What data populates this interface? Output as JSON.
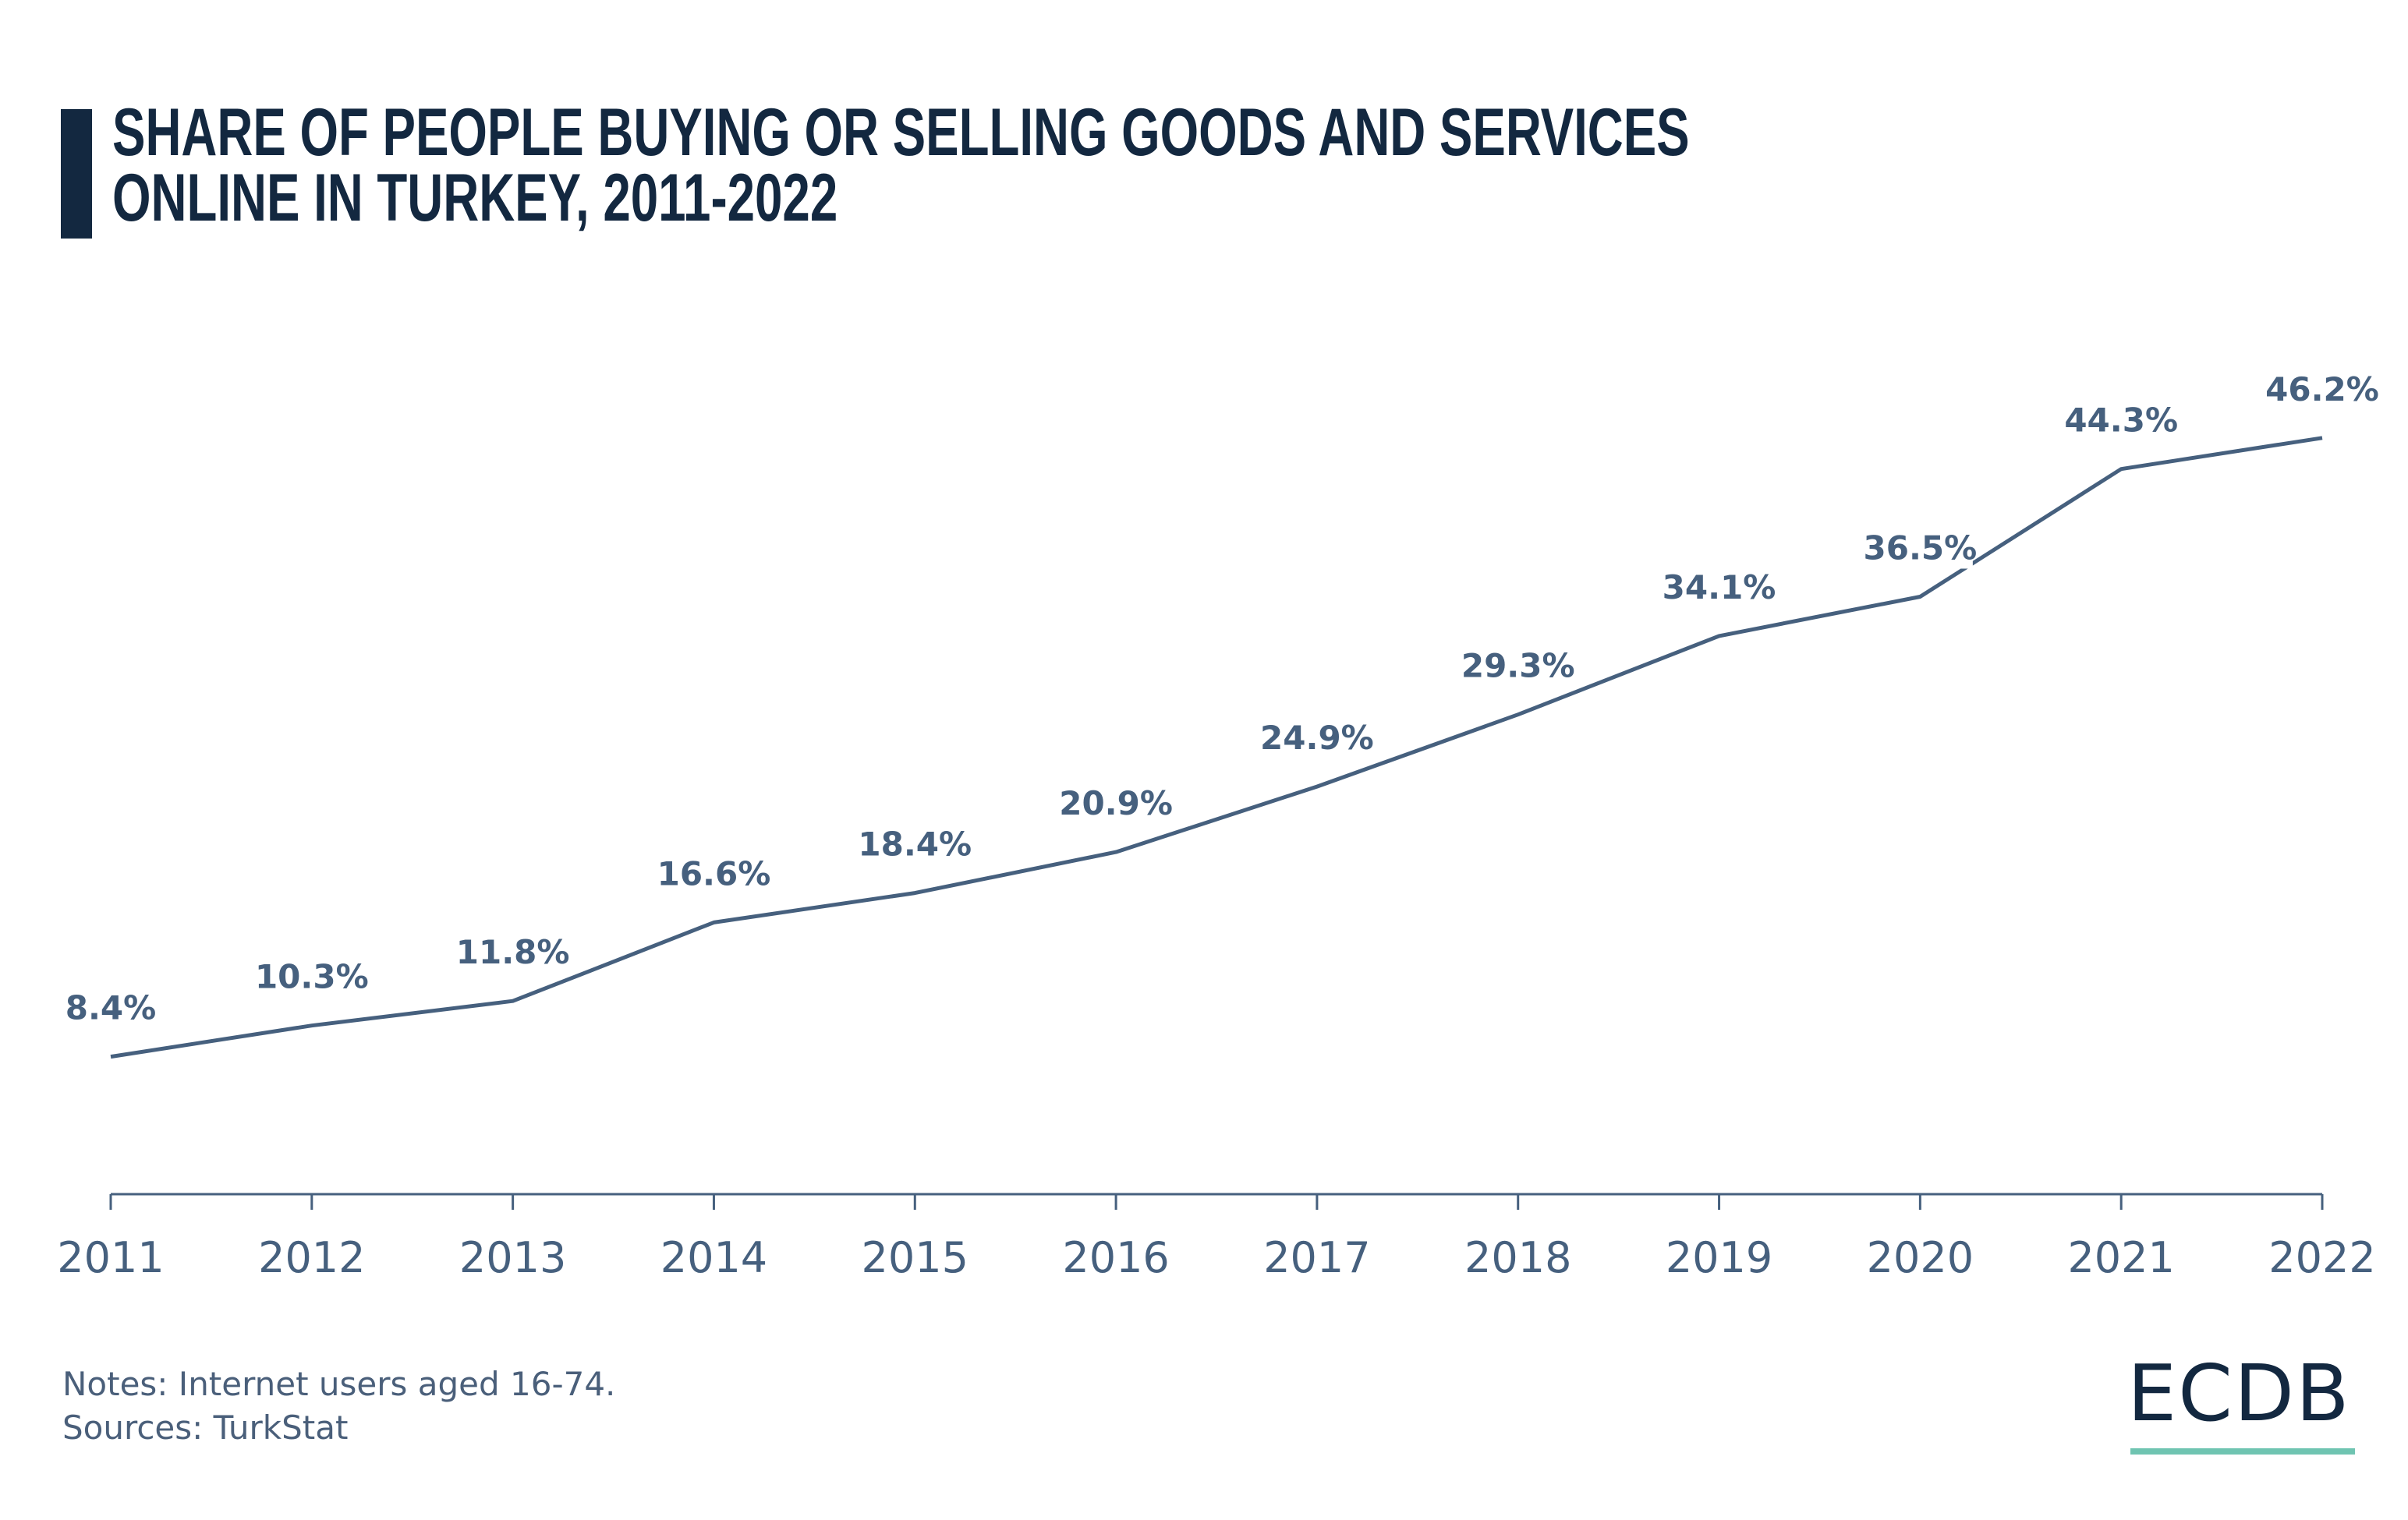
{
  "title_lines": [
    "SHARE OF PEOPLE BUYING OR SELLING GOODS AND SERVICES",
    "ONLINE IN TURKEY, 2011-2022"
  ],
  "notes": "Notes: Internet users aged 16-74.",
  "sources": "Sources: TurkStat",
  "logo": "ECDB",
  "colors": {
    "line": "#46607e",
    "title": "#132840",
    "accent": "#6fc4b1"
  },
  "chart_data": {
    "type": "line",
    "title": "SHARE OF PEOPLE BUYING OR SELLING GOODS AND SERVICES ONLINE IN TURKEY, 2011-2022",
    "xlabel": "",
    "ylabel": "",
    "categories": [
      "2011",
      "2012",
      "2013",
      "2014",
      "2015",
      "2016",
      "2017",
      "2018",
      "2019",
      "2020",
      "2021",
      "2022"
    ],
    "values": [
      8.4,
      10.3,
      11.8,
      16.6,
      18.4,
      20.9,
      24.9,
      29.3,
      34.1,
      36.5,
      44.3,
      46.2
    ],
    "data_labels": [
      "8.4%",
      "10.3%",
      "11.8%",
      "16.6%",
      "18.4%",
      "20.9%",
      "24.9%",
      "29.3%",
      "34.1%",
      "36.5%",
      "44.3%",
      "46.2%"
    ],
    "ylim": [
      0,
      50
    ],
    "grid": false,
    "y_axis_visible": false,
    "legend": "none"
  }
}
